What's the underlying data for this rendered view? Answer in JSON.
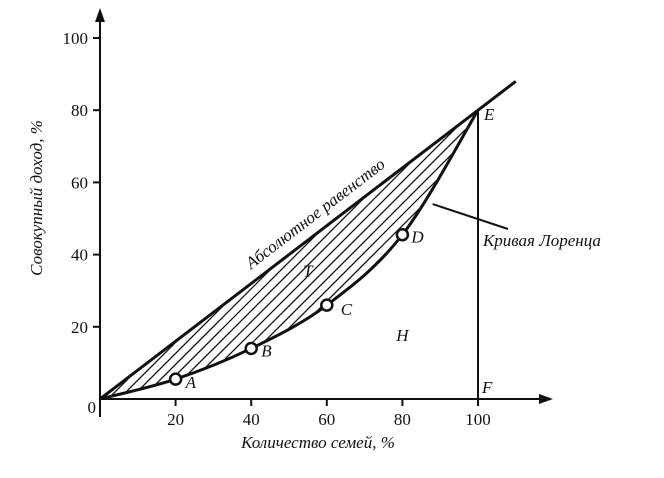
{
  "chart_data": {
    "type": "line",
    "title": "",
    "xlabel": "Количество семей, %",
    "ylabel": "Совокупный доход, %",
    "xlim": [
      0,
      100
    ],
    "ylim": [
      0,
      100
    ],
    "x_ticks": [
      "0",
      "20",
      "40",
      "60",
      "80",
      "100"
    ],
    "y_ticks": [
      "20",
      "40",
      "60",
      "80",
      "100"
    ],
    "series": [
      {
        "name": "Абсолютное равенство",
        "x": [
          0,
          110
        ],
        "y": [
          0,
          88
        ]
      },
      {
        "name": "Кривая Лоренца",
        "x": [
          0,
          20,
          40,
          60,
          80,
          100
        ],
        "y": [
          0,
          5.5,
          14,
          26,
          45.5,
          80
        ]
      }
    ],
    "points": [
      {
        "label": "A",
        "x": 20,
        "y": 5.5
      },
      {
        "label": "B",
        "x": 40,
        "y": 14
      },
      {
        "label": "C",
        "x": 60,
        "y": 26
      },
      {
        "label": "D",
        "x": 80,
        "y": 45.5
      },
      {
        "label": "E",
        "x": 100,
        "y": 80
      },
      {
        "label": "F",
        "x": 100,
        "y": 0
      }
    ],
    "regions": [
      {
        "label": "T",
        "x": 55,
        "y": 34
      },
      {
        "label": "H",
        "x": 80,
        "y": 16
      }
    ],
    "equality_label": "Абсолютное равенство",
    "lorenz_label": "Кривая Лоренца",
    "grid": false,
    "legend": "none"
  }
}
